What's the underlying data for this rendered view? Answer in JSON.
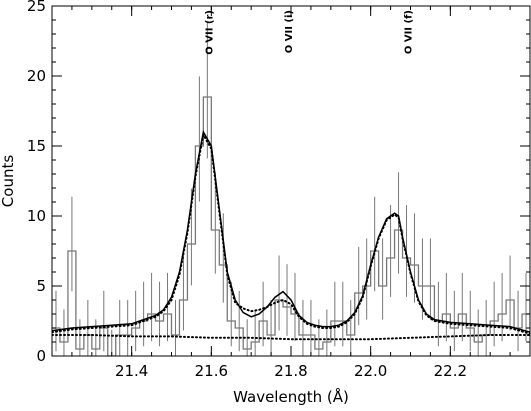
{
  "chart_data": {
    "type": "line",
    "title": "",
    "xlabel": "Wavelength (Å)",
    "ylabel": "Counts",
    "xlim": [
      21.2,
      22.4
    ],
    "ylim": [
      0,
      25
    ],
    "xticks": [
      21.4,
      21.6,
      21.8,
      22.0,
      22.2
    ],
    "yticks": [
      0,
      5,
      10,
      15,
      20,
      25
    ],
    "grid": false,
    "legend": "none",
    "line_labels": [
      {
        "text": "O VII (r)",
        "x": 21.6
      },
      {
        "text": "O VII (i)",
        "x": 21.8
      },
      {
        "text": "O VII (f)",
        "x": 22.1
      }
    ],
    "observed_counts": {
      "bin_width": 0.02,
      "x": [
        21.21,
        21.23,
        21.25,
        21.27,
        21.29,
        21.31,
        21.33,
        21.35,
        21.37,
        21.39,
        21.41,
        21.43,
        21.45,
        21.47,
        21.49,
        21.51,
        21.53,
        21.55,
        21.57,
        21.59,
        21.61,
        21.63,
        21.65,
        21.67,
        21.69,
        21.71,
        21.73,
        21.75,
        21.77,
        21.79,
        21.81,
        21.83,
        21.85,
        21.87,
        21.89,
        21.91,
        21.93,
        21.95,
        21.97,
        21.99,
        22.01,
        22.03,
        22.05,
        22.07,
        22.09,
        22.11,
        22.13,
        22.15,
        22.17,
        22.19,
        22.21,
        22.23,
        22.25,
        22.27,
        22.29,
        22.31,
        22.33,
        22.35,
        22.37,
        22.39
      ],
      "y": [
        2,
        1,
        7.5,
        0.5,
        1.5,
        0.5,
        2,
        0,
        1.5,
        1.5,
        2,
        2.5,
        3,
        2.5,
        3,
        1.5,
        4,
        8,
        15,
        18.5,
        9,
        6.5,
        2.5,
        2,
        0.5,
        1,
        2.5,
        1.5,
        4,
        3.5,
        3,
        1.5,
        1.5,
        0.5,
        1,
        2.5,
        2.5,
        1.5,
        4.5,
        5,
        7.5,
        5,
        7,
        9,
        7,
        6.5,
        5,
        5,
        2.5,
        3,
        2,
        3,
        2,
        1,
        1.5,
        2.5,
        3,
        4,
        2,
        3
      ]
    },
    "series": [
      {
        "style": "solid",
        "x": [
          21.2,
          21.25,
          21.3,
          21.35,
          21.4,
          21.43,
          21.46,
          21.48,
          21.5,
          21.52,
          21.54,
          21.56,
          21.57,
          21.58,
          21.6,
          21.62,
          21.64,
          21.66,
          21.68,
          21.7,
          21.72,
          21.74,
          21.76,
          21.78,
          21.8,
          21.82,
          21.84,
          21.86,
          21.88,
          21.9,
          21.92,
          21.94,
          21.96,
          21.98,
          22.0,
          22.02,
          22.04,
          22.06,
          22.07,
          22.08,
          22.1,
          22.12,
          22.14,
          22.16,
          22.18,
          22.2,
          22.25,
          22.3,
          22.35,
          22.4
        ],
        "y": [
          1.8,
          2,
          2.1,
          2.2,
          2.3,
          2.6,
          2.9,
          3.3,
          4.2,
          6,
          9,
          13,
          14.5,
          16,
          15,
          10.5,
          6,
          4,
          3.1,
          2.8,
          3,
          3.5,
          4.2,
          4.6,
          4,
          2.9,
          2.4,
          2.2,
          2.1,
          2.1,
          2.2,
          2.5,
          3.1,
          4.3,
          6.5,
          8.5,
          9.8,
          10.2,
          10,
          8.5,
          6,
          4,
          3,
          2.6,
          2.5,
          2.4,
          2.3,
          2.2,
          2.1,
          1.7
        ]
      },
      {
        "style": "dotted",
        "x": [
          21.2,
          21.25,
          21.3,
          21.35,
          21.4,
          21.43,
          21.46,
          21.48,
          21.5,
          21.52,
          21.54,
          21.56,
          21.57,
          21.58,
          21.6,
          21.62,
          21.64,
          21.66,
          21.68,
          21.7,
          21.72,
          21.74,
          21.76,
          21.78,
          21.8,
          21.82,
          21.84,
          21.86,
          21.88,
          21.9,
          21.92,
          21.94,
          21.96,
          21.98,
          22.0,
          22.02,
          22.04,
          22.06,
          22.07,
          22.08,
          22.1,
          22.12,
          22.14,
          22.16,
          22.18,
          22.2,
          22.25,
          22.3,
          22.35,
          22.4
        ],
        "y": [
          1.7,
          1.9,
          2,
          2.1,
          2.2,
          2.5,
          2.8,
          3.2,
          4,
          5.8,
          8.8,
          12.8,
          14.3,
          15.8,
          14.8,
          10.3,
          5.8,
          3.8,
          3.4,
          3.2,
          3.3,
          3.5,
          3.8,
          4,
          3.7,
          2.8,
          2.3,
          2.1,
          2,
          2,
          2.1,
          2.4,
          3,
          4.2,
          6.4,
          8.4,
          9.7,
          10.1,
          9.9,
          8.4,
          5.9,
          3.9,
          2.9,
          2.5,
          2.4,
          2.3,
          2.2,
          2.1,
          2,
          1.6
        ]
      },
      {
        "style": "dotted",
        "x": [
          21.2,
          21.3,
          21.4,
          21.5,
          21.6,
          21.7,
          21.8,
          21.9,
          22.0,
          22.1,
          22.2,
          22.3,
          22.4
        ],
        "y": [
          1.5,
          1.5,
          1.4,
          1.4,
          1.3,
          1.3,
          1.2,
          1.2,
          1.2,
          1.3,
          1.4,
          1.5,
          1.5
        ]
      }
    ]
  }
}
